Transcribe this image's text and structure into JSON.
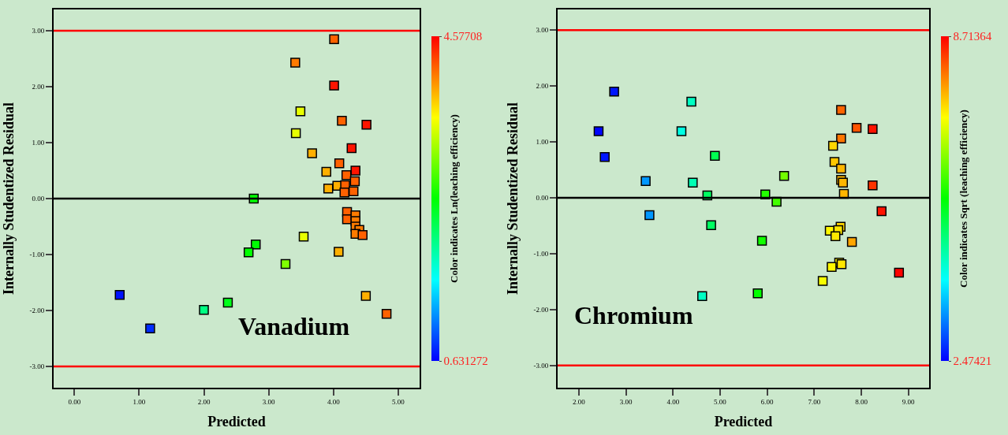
{
  "chart_data": [
    {
      "type": "scatter",
      "xlabel": "Predicted",
      "ylabel": "Internally Studentized Residual",
      "clabel": "Color indicates Ln(leaching efficiency)",
      "annotations": [
        "Vanadium"
      ],
      "marker": "square",
      "grid": false,
      "legend": false,
      "x": [
        4.01,
        3.41,
        4.01,
        3.49,
        4.13,
        4.51,
        3.42,
        4.28,
        3.67,
        4.09,
        3.89,
        4.34,
        4.2,
        4.33,
        3.92,
        4.06,
        4.18,
        4.17,
        4.31,
        2.77,
        4.21,
        4.21,
        4.34,
        4.34,
        4.34,
        4.4,
        4.34,
        4.45,
        3.54,
        2.8,
        2.69,
        4.08,
        3.26,
        0.7,
        4.5,
        2.37,
        2.0,
        4.82,
        1.17
      ],
      "values": [
        2.85,
        2.43,
        2.02,
        1.56,
        1.39,
        1.32,
        1.17,
        0.9,
        0.81,
        0.63,
        0.48,
        0.5,
        0.42,
        0.31,
        0.18,
        0.23,
        0.24,
        0.11,
        0.13,
        0.0,
        -0.24,
        -0.37,
        -0.3,
        -0.4,
        -0.5,
        -0.56,
        -0.63,
        -0.65,
        -0.68,
        -0.82,
        -0.96,
        -0.95,
        -1.17,
        -1.72,
        -1.74,
        -1.86,
        -1.99,
        -2.06,
        -2.32
      ],
      "cvalues": [
        4.2,
        4.1,
        4.5,
        3.5,
        4.2,
        4.5,
        3.5,
        4.5,
        3.9,
        4.2,
        3.9,
        4.5,
        4.2,
        4.2,
        3.9,
        3.9,
        4.2,
        4.2,
        4.2,
        2.6,
        4.2,
        4.2,
        4.1,
        4.1,
        4.1,
        4.1,
        4.1,
        4.2,
        3.5,
        2.6,
        2.6,
        3.9,
        3.1,
        0.7,
        3.9,
        2.5,
        2.1,
        4.2,
        0.8
      ],
      "clim": [
        0.631272,
        4.57708
      ],
      "cticks": [
        0.631272,
        4.57708
      ],
      "xlim": [
        -0.32,
        5.33
      ],
      "xticks": [
        {
          "value": 0,
          "label": "0.00"
        },
        {
          "value": 1,
          "label": "1.00"
        },
        {
          "value": 2,
          "label": "2.00"
        },
        {
          "value": 3,
          "label": "3.00"
        },
        {
          "value": 4,
          "label": "4.00"
        },
        {
          "value": 5,
          "label": "5.00"
        }
      ],
      "ylim": [
        -3.38,
        3.38
      ],
      "yticks": [
        {
          "value": -3,
          "label": "-3.00"
        },
        {
          "value": -2,
          "label": "-2.00"
        },
        {
          "value": -1,
          "label": "-1.00"
        },
        {
          "value": 0,
          "label": "0.00"
        },
        {
          "value": 1,
          "label": "1.00"
        },
        {
          "value": 2,
          "label": "2.00"
        },
        {
          "value": 3,
          "label": "3.00"
        }
      ],
      "ref_lines": [
        {
          "axis": "y",
          "value": 3,
          "color": "#ff0000"
        },
        {
          "axis": "y",
          "value": -3,
          "color": "#ff0000"
        },
        {
          "axis": "y",
          "value": 0,
          "color": "#000000"
        }
      ]
    },
    {
      "type": "scatter",
      "xlabel": "Predicted",
      "ylabel": "Internally Studentized Residual",
      "clabel": "Color indicates Sqrt (leaching efficiency)",
      "annotations": [
        "Chromium"
      ],
      "marker": "square",
      "grid": false,
      "legend": false,
      "x": [
        2.75,
        2.42,
        2.55,
        3.42,
        3.5,
        4.39,
        4.18,
        4.42,
        4.62,
        4.89,
        4.73,
        4.81,
        5.89,
        5.8,
        5.96,
        6.2,
        6.36,
        7.57,
        7.9,
        8.24,
        7.57,
        7.4,
        7.43,
        7.57,
        7.57,
        7.61,
        7.63,
        8.24,
        8.43,
        7.56,
        7.33,
        7.51,
        7.45,
        7.8,
        7.53,
        7.58,
        7.37,
        7.18,
        8.8
      ],
      "values": [
        1.9,
        1.19,
        0.73,
        0.3,
        -0.31,
        1.72,
        1.19,
        0.27,
        -1.76,
        0.75,
        0.04,
        -0.49,
        -0.77,
        -1.71,
        0.06,
        -0.07,
        0.39,
        1.57,
        1.25,
        1.23,
        1.06,
        0.93,
        0.64,
        0.52,
        0.32,
        0.27,
        0.07,
        0.22,
        -0.24,
        -0.52,
        -0.59,
        -0.58,
        -0.69,
        -0.79,
        -1.16,
        -1.19,
        -1.24,
        -1.49,
        -1.34
      ],
      "cvalues": [
        2.6,
        2.5,
        2.6,
        3.4,
        3.4,
        4.4,
        4.2,
        4.5,
        4.4,
        5.1,
        5.0,
        5.0,
        5.7,
        5.6,
        5.8,
        6.0,
        6.3,
        8.1,
        8.2,
        8.6,
        8.0,
        7.4,
        7.5,
        7.6,
        7.6,
        7.6,
        7.6,
        8.4,
        8.6,
        7.4,
        7.2,
        7.3,
        7.3,
        7.7,
        7.2,
        7.3,
        7.2,
        7.1,
        8.7
      ],
      "clim": [
        2.47421,
        8.71364
      ],
      "cticks": [
        2.47421,
        8.71364
      ],
      "xlim": [
        1.55,
        9.44
      ],
      "xticks": [
        {
          "value": 2,
          "label": "2.00"
        },
        {
          "value": 3,
          "label": "3.00"
        },
        {
          "value": 4,
          "label": "4.00"
        },
        {
          "value": 5,
          "label": "5.00"
        },
        {
          "value": 6,
          "label": "6.00"
        },
        {
          "value": 7,
          "label": "7.00"
        },
        {
          "value": 8,
          "label": "8.00"
        },
        {
          "value": 9,
          "label": "9.00"
        }
      ],
      "ylim": [
        -3.4,
        3.37
      ],
      "yticks": [
        {
          "value": -3,
          "label": "-3.00"
        },
        {
          "value": -2,
          "label": "-2.00"
        },
        {
          "value": -1,
          "label": "-1.00"
        },
        {
          "value": 0,
          "label": "0.00"
        },
        {
          "value": 1,
          "label": "1.00"
        },
        {
          "value": 2,
          "label": "2.00"
        },
        {
          "value": 3,
          "label": "3.00"
        }
      ],
      "ref_lines": [
        {
          "axis": "y",
          "value": 3,
          "color": "#ff0000"
        },
        {
          "axis": "y",
          "value": -3,
          "color": "#ff0000"
        },
        {
          "axis": "y",
          "value": 0,
          "color": "#000000"
        }
      ]
    }
  ]
}
